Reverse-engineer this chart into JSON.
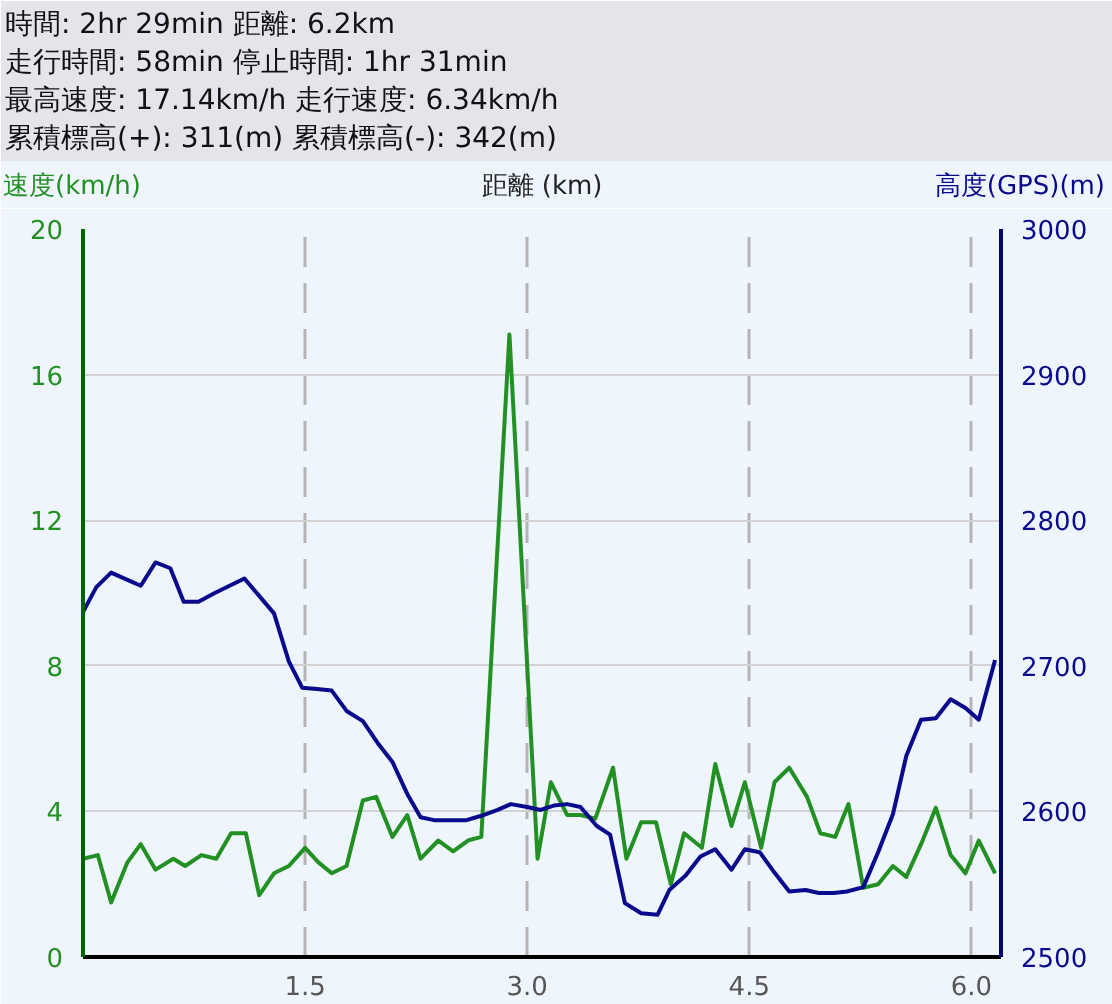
{
  "chart_data": {
    "type": "line",
    "annotations": [
      "時間: 2hr 29min 距離: 6.2km",
      "走行時間: 58min 停止時間: 1hr 31min",
      "最高速度: 17.14km/h 走行速度: 6.34km/h",
      "累積標高(+): 311(m) 累積標高(-): 342(m)"
    ],
    "xlabel": "距離 (km)",
    "ylabel": "速度(km/h)",
    "y2label": "高度(GPS)(m)",
    "xlim": [
      0,
      6.2
    ],
    "xticks": [
      1.5,
      {
        "value": 3,
        "label": "3.0"
      },
      4.5,
      {
        "value": 6,
        "label": "6.0"
      }
    ],
    "ylim": [
      0,
      20
    ],
    "yticks": [
      0,
      4,
      8,
      12,
      16,
      20
    ],
    "y2lim": [
      2500,
      3000
    ],
    "y2ticks": [
      2500,
      2600,
      2700,
      2800,
      2900,
      3000
    ],
    "grid": true,
    "series": [
      {
        "color": "#239023",
        "x": [
          0,
          0.1,
          0.19,
          0.3,
          0.39,
          0.49,
          0.61,
          0.69,
          0.8,
          0.9,
          1.0,
          1.1,
          1.19,
          1.29,
          1.39,
          1.5,
          1.59,
          1.68,
          1.78,
          1.89,
          1.98,
          2.09,
          2.19,
          2.28,
          2.4,
          2.5,
          2.6,
          2.69,
          2.88,
          3.07,
          3.16,
          3.27,
          3.36,
          3.46,
          3.58,
          3.67,
          3.77,
          3.87,
          3.97,
          4.06,
          4.18,
          4.27,
          4.38,
          4.47,
          4.58,
          4.67,
          4.77,
          4.89,
          4.98,
          5.08,
          5.17,
          5.27,
          5.37,
          5.47,
          5.56,
          5.66,
          5.76,
          5.86,
          5.96,
          6.05,
          6.16
        ],
        "values": [
          2.7,
          2.8,
          1.5,
          2.6,
          3.1,
          2.4,
          2.7,
          2.5,
          2.8,
          2.7,
          3.4,
          3.4,
          1.7,
          2.3,
          2.5,
          3.0,
          2.6,
          2.3,
          2.5,
          4.3,
          4.4,
          3.3,
          3.9,
          2.7,
          3.2,
          2.9,
          3.2,
          3.3,
          17.1,
          2.7,
          4.8,
          3.9,
          3.9,
          3.8,
          5.2,
          2.7,
          3.7,
          3.7,
          2.0,
          3.4,
          3.0,
          5.3,
          3.6,
          4.8,
          3.0,
          4.8,
          5.2,
          4.4,
          3.4,
          3.3,
          4.2,
          1.9,
          2.0,
          2.5,
          2.2,
          3.1,
          4.1,
          2.8,
          2.3,
          3.2,
          2.3
        ]
      },
      {
        "color": "#0a0a8c",
        "axis": "y2",
        "x": [
          0,
          0.09,
          0.19,
          0.3,
          0.39,
          0.49,
          0.59,
          0.68,
          0.78,
          0.89,
          0.99,
          1.09,
          1.19,
          1.29,
          1.39,
          1.48,
          1.58,
          1.68,
          1.78,
          1.89,
          1.99,
          2.09,
          2.19,
          2.28,
          2.37,
          2.49,
          2.59,
          2.69,
          2.8,
          2.89,
          3.0,
          3.09,
          3.18,
          3.27,
          3.36,
          3.47,
          3.56,
          3.66,
          3.77,
          3.88,
          3.96,
          4.07,
          4.17,
          4.27,
          4.38,
          4.47,
          4.57,
          4.67,
          4.77,
          4.88,
          4.97,
          5.07,
          5.16,
          5.27,
          5.37,
          5.47,
          5.56,
          5.66,
          5.76,
          5.86,
          5.96,
          6.05,
          6.16
        ],
        "values": [
          2737,
          2754,
          2764,
          2759,
          2755,
          2771,
          2767,
          2744,
          2744,
          2750,
          2755,
          2760,
          2748,
          2736,
          2703,
          2685,
          2684,
          2683,
          2669,
          2662,
          2647,
          2634,
          2612,
          2596,
          2594,
          2594,
          2594,
          2597,
          2601,
          2605,
          2603,
          2601,
          2604,
          2605,
          2603,
          2590,
          2584,
          2537,
          2530,
          2529,
          2546,
          2556,
          2569,
          2574,
          2560,
          2574,
          2572,
          2558,
          2545,
          2546,
          2544,
          2544,
          2545,
          2548,
          2572,
          2598,
          2638,
          2663,
          2664,
          2677,
          2671,
          2663,
          2704
        ]
      }
    ]
  }
}
